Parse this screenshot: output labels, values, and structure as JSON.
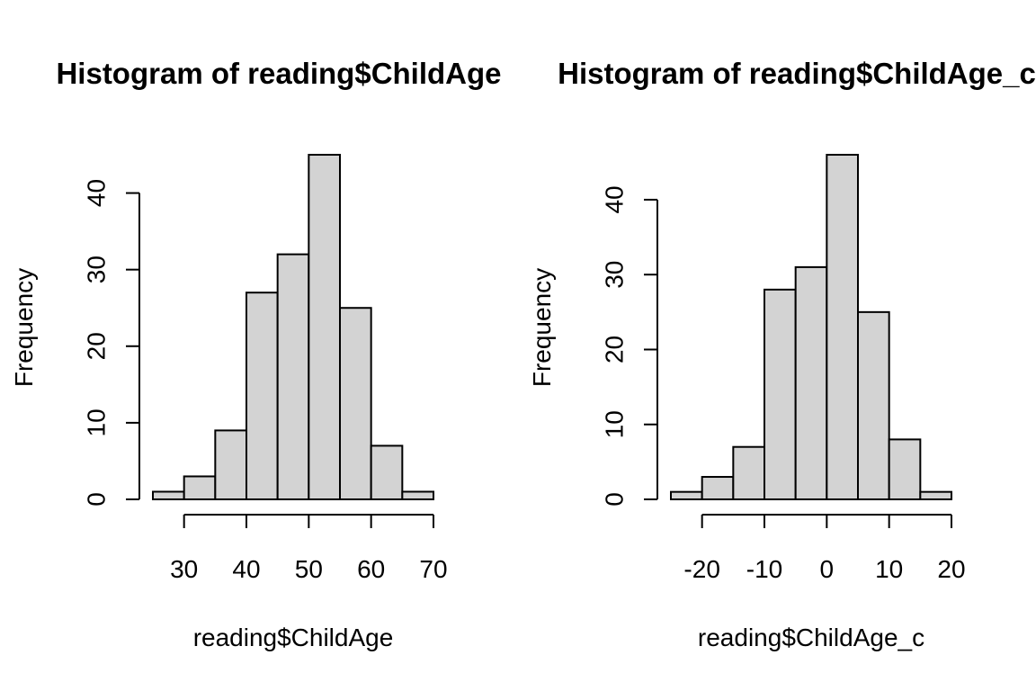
{
  "chart_data": [
    {
      "type": "bar",
      "title": "Histogram of reading$ChildAge",
      "xlabel": "reading$ChildAge",
      "ylabel": "Frequency",
      "bins": [
        {
          "from": 25,
          "to": 30,
          "count": 1
        },
        {
          "from": 30,
          "to": 35,
          "count": 3
        },
        {
          "from": 35,
          "to": 40,
          "count": 9
        },
        {
          "from": 40,
          "to": 45,
          "count": 27
        },
        {
          "from": 45,
          "to": 50,
          "count": 32
        },
        {
          "from": 50,
          "to": 55,
          "count": 45
        },
        {
          "from": 55,
          "to": 60,
          "count": 25
        },
        {
          "from": 60,
          "to": 65,
          "count": 7
        },
        {
          "from": 65,
          "to": 70,
          "count": 1
        }
      ],
      "xlim": [
        25,
        70
      ],
      "ylim": [
        0,
        45
      ],
      "xticks": [
        30,
        40,
        50,
        60,
        70
      ],
      "yticks": [
        0,
        10,
        20,
        30,
        40
      ],
      "grid": false
    },
    {
      "type": "bar",
      "title": "Histogram of reading$ChildAge_c",
      "xlabel": "reading$ChildAge_c",
      "ylabel": "Frequency",
      "bins": [
        {
          "from": -25,
          "to": -20,
          "count": 1
        },
        {
          "from": -20,
          "to": -15,
          "count": 3
        },
        {
          "from": -15,
          "to": -10,
          "count": 7
        },
        {
          "from": -10,
          "to": -5,
          "count": 28
        },
        {
          "from": -5,
          "to": 0,
          "count": 31
        },
        {
          "from": 0,
          "to": 5,
          "count": 46
        },
        {
          "from": 5,
          "to": 10,
          "count": 25
        },
        {
          "from": 10,
          "to": 15,
          "count": 8
        },
        {
          "from": 15,
          "to": 20,
          "count": 1
        }
      ],
      "xlim": [
        -25,
        20
      ],
      "ylim": [
        0,
        46
      ],
      "xticks": [
        -20,
        -10,
        0,
        10,
        20
      ],
      "yticks": [
        0,
        10,
        20,
        30,
        40
      ],
      "grid": false
    }
  ]
}
